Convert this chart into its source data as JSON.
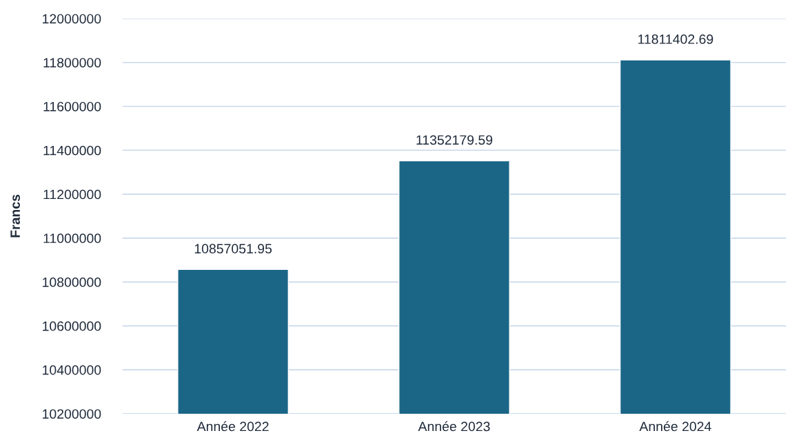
{
  "chart_data": {
    "type": "bar",
    "ylabel": "Francs",
    "categories": [
      "Année 2022",
      "Année 2023",
      "Année 2024"
    ],
    "values": [
      10857051.95,
      11352179.59,
      11811402.69
    ],
    "color": "#1b6687",
    "ylim": [
      10200000,
      12000000
    ],
    "yticks": [
      10200000,
      10400000,
      10600000,
      10800000,
      11000000,
      11200000,
      11400000,
      11600000,
      11800000,
      12000000
    ],
    "grid": "y",
    "data_labels": true
  }
}
